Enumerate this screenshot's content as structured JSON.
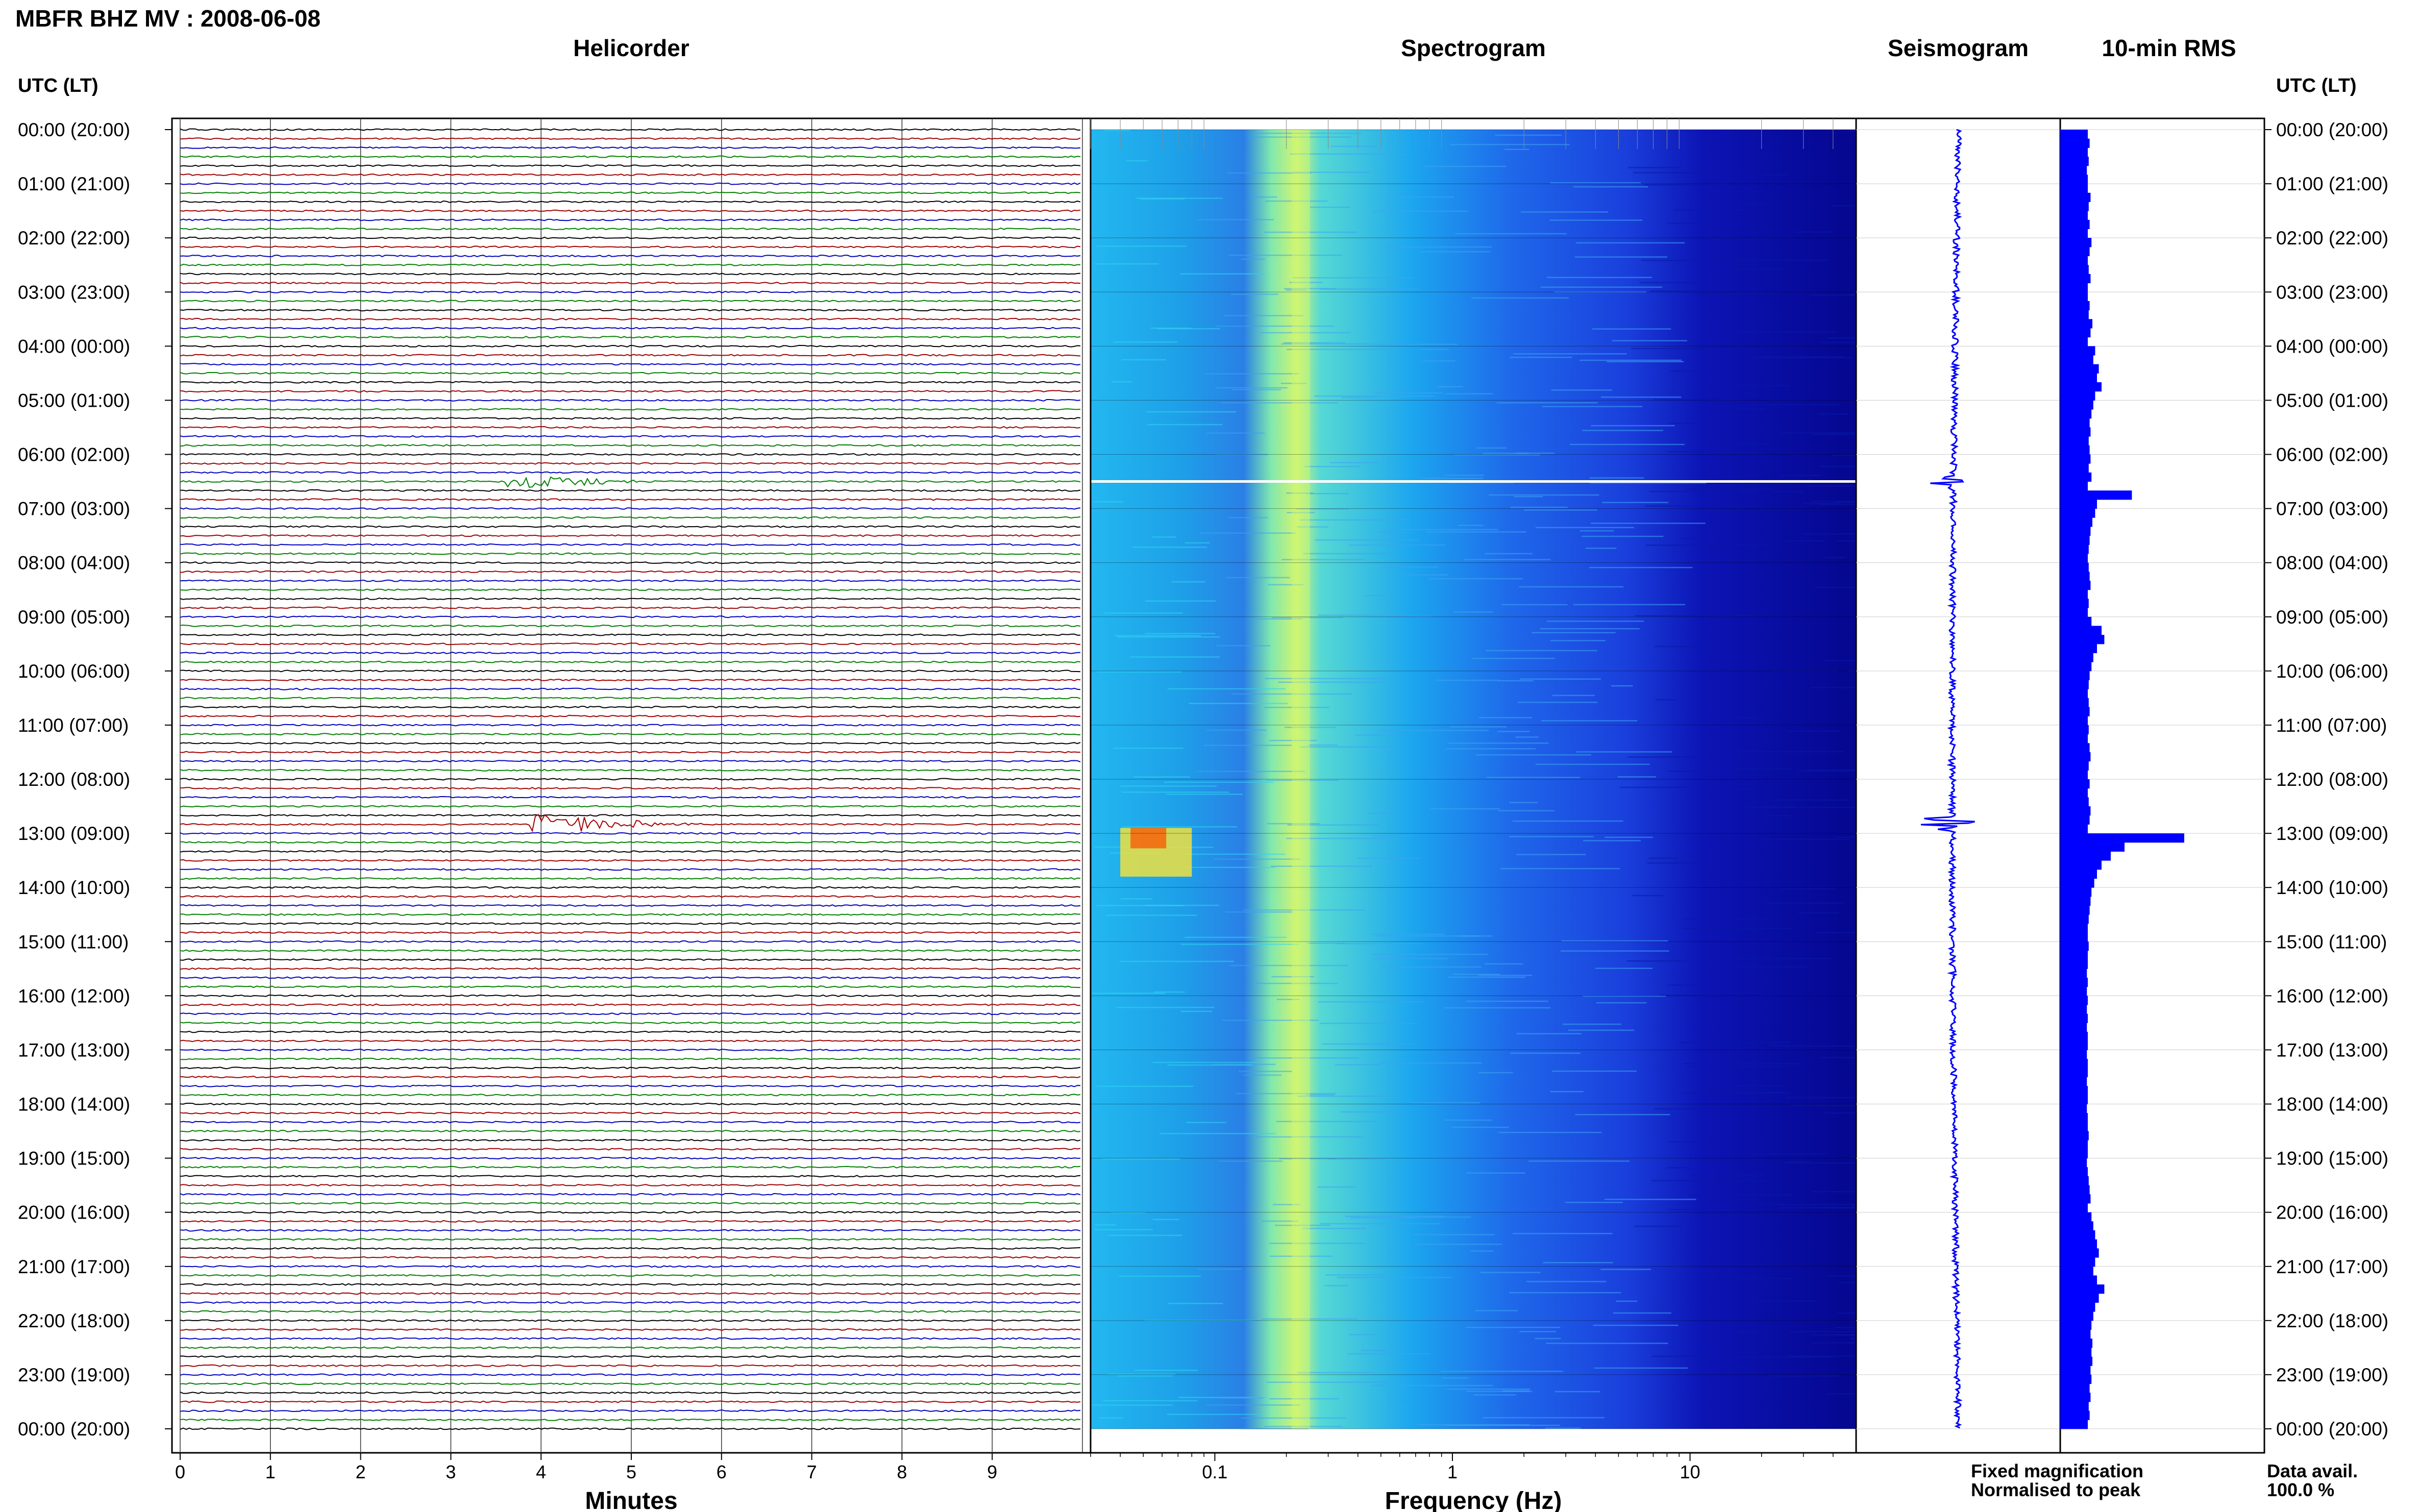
{
  "header": {
    "title": "MBFR BHZ MV : 2008-06-08",
    "time_axis_label_left": "UTC (LT)",
    "time_axis_label_right": "UTC (LT)"
  },
  "panels": {
    "helicorder": "Helicorder",
    "spectrogram": "Spectrogram",
    "seismogram": "Seismogram",
    "rms": "10-min RMS"
  },
  "footer": {
    "minutes_label": "Minutes",
    "frequency_label": "Frequency (Hz)",
    "legend_fixed": "Fixed magnification",
    "legend_normalised": "Normalised to peak",
    "data_avail_label": "Data avail.",
    "data_avail_value": "100.0 %"
  },
  "colors": {
    "legend_fixed": "#0000ff",
    "legend_normalised": "#ff0000",
    "trace_black": "#000000",
    "trace_red": "#a00000",
    "trace_blue": "#0000c0",
    "trace_green": "#008000",
    "spectro_low": "#00008b",
    "spectro_high": "#ffff00",
    "rms_bar": "#0000ff"
  },
  "chart_data": {
    "type": "heatmap",
    "time_ticks": [
      "00:00 (20:00)",
      "01:00 (21:00)",
      "02:00 (22:00)",
      "03:00 (23:00)",
      "04:00 (00:00)",
      "05:00 (01:00)",
      "06:00 (02:00)",
      "07:00 (03:00)",
      "08:00 (04:00)",
      "09:00 (05:00)",
      "10:00 (06:00)",
      "11:00 (07:00)",
      "12:00 (08:00)",
      "13:00 (09:00)",
      "14:00 (10:00)",
      "15:00 (11:00)",
      "16:00 (12:00)",
      "17:00 (13:00)",
      "18:00 (14:00)",
      "19:00 (15:00)",
      "20:00 (16:00)",
      "21:00 (17:00)",
      "22:00 (18:00)",
      "23:00 (19:00)",
      "00:00 (20:00)"
    ],
    "helicorder": {
      "xlabel": "Minutes",
      "xlim": [
        0,
        10
      ],
      "xticks": [
        "0",
        "1",
        "2",
        "3",
        "4",
        "5",
        "6",
        "7",
        "8",
        "9"
      ],
      "lines_per_hour": 6,
      "trace_colors": [
        "black",
        "red",
        "blue",
        "green"
      ],
      "events": [
        {
          "hour": 6.5,
          "minute_start": 3.6,
          "minute_end": 5.5,
          "amplitude": 0.8
        },
        {
          "hour": 12.83,
          "minute_start": 3.9,
          "minute_end": 6.0,
          "amplitude": 1.0
        }
      ]
    },
    "spectrogram": {
      "xlabel": "Frequency (Hz)",
      "xscale": "log",
      "xlim": [
        0.03,
        50
      ],
      "xticks": [
        "0.1",
        "1",
        "10"
      ],
      "colormap": "jet",
      "features": [
        {
          "freq_hz": 0.23,
          "note": "microseism peak, persistent"
        },
        {
          "hour": 6.5,
          "note": "white gap line"
        },
        {
          "hour": 12.9,
          "freq_low": 0.04,
          "freq_high": 0.08,
          "note": "strong low-frequency energy"
        }
      ]
    },
    "rms": {
      "interval_minutes": 10,
      "values": [
        0.3,
        0.32,
        0.3,
        0.31,
        0.29,
        0.3,
        0.3,
        0.33,
        0.31,
        0.3,
        0.32,
        0.3,
        0.34,
        0.32,
        0.3,
        0.31,
        0.33,
        0.3,
        0.3,
        0.32,
        0.31,
        0.35,
        0.33,
        0.3,
        0.38,
        0.36,
        0.42,
        0.4,
        0.45,
        0.38,
        0.36,
        0.34,
        0.32,
        0.33,
        0.31,
        0.32,
        0.33,
        0.31,
        0.34,
        0.3,
        0.78,
        0.4,
        0.38,
        0.35,
        0.33,
        0.32,
        0.31,
        0.3,
        0.31,
        0.32,
        0.33,
        0.3,
        0.31,
        0.3,
        0.34,
        0.45,
        0.48,
        0.4,
        0.36,
        0.34,
        0.32,
        0.31,
        0.3,
        0.31,
        0.32,
        0.3,
        0.31,
        0.3,
        0.32,
        0.33,
        0.31,
        0.3,
        0.32,
        0.3,
        0.31,
        0.33,
        0.32,
        0.3,
        1.35,
        0.7,
        0.55,
        0.45,
        0.4,
        0.37,
        0.34,
        0.33,
        0.32,
        0.31,
        0.3,
        0.3,
        0.31,
        0.3,
        0.3,
        0.29,
        0.3,
        0.29,
        0.3,
        0.29,
        0.3,
        0.29,
        0.3,
        0.3,
        0.29,
        0.3,
        0.3,
        0.29,
        0.3,
        0.3,
        0.29,
        0.3,
        0.3,
        0.31,
        0.3,
        0.3,
        0.29,
        0.3,
        0.31,
        0.32,
        0.33,
        0.3,
        0.34,
        0.36,
        0.38,
        0.4,
        0.42,
        0.38,
        0.36,
        0.4,
        0.48,
        0.42,
        0.38,
        0.36,
        0.34,
        0.33,
        0.35,
        0.34,
        0.35,
        0.33,
        0.34,
        0.32,
        0.33,
        0.31,
        0.32,
        0.3
      ]
    }
  }
}
